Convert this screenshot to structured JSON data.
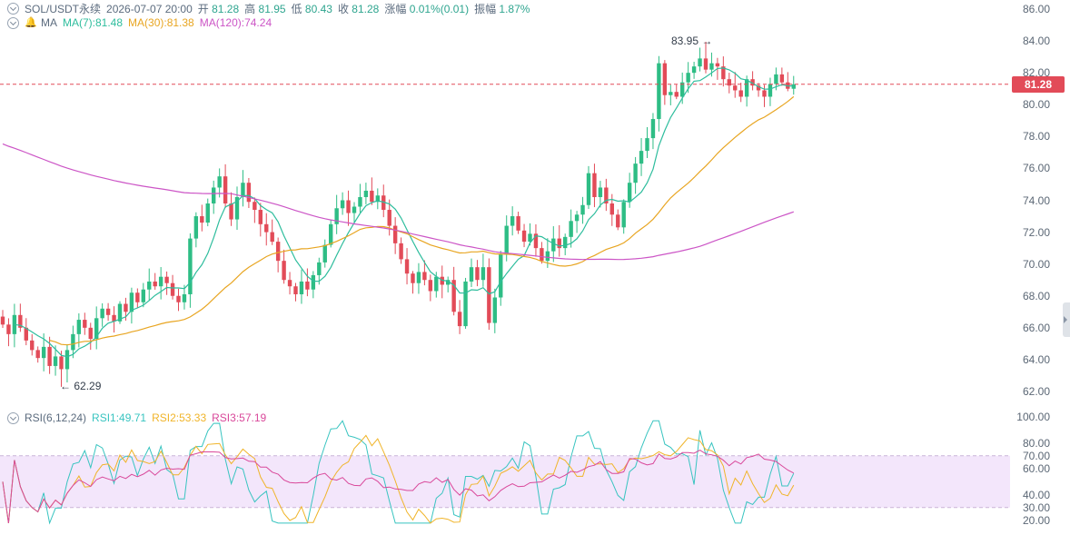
{
  "header": {
    "symbol": "SOL/USDT永续",
    "datetime": "2026-07-07 20:00",
    "open_label": "开",
    "open": "81.28",
    "high_label": "高",
    "high": "81.95",
    "low_label": "低",
    "low": "80.43",
    "close_label": "收",
    "close": "81.28",
    "change_label": "涨幅",
    "change": "0.01%(0.01)",
    "amp_label": "振幅",
    "amp": "1.87%"
  },
  "ma_bar": {
    "label": "MA",
    "ma7": "MA(7):81.48",
    "ma30": "MA(30):81.38",
    "ma120": "MA(120):74.24"
  },
  "rsi_bar": {
    "label": "RSI(6,12,24)",
    "rsi1": "RSI1:49.71",
    "rsi2": "RSI2:53.33",
    "rsi3": "RSI3:57.19"
  },
  "price_axis": [
    "86.00",
    "84.00",
    "82.00",
    "80.00",
    "78.00",
    "76.00",
    "74.00",
    "72.00",
    "70.00",
    "68.00",
    "66.00",
    "64.00",
    "62.00"
  ],
  "rsi_axis": [
    "100.00",
    "80.00",
    "70.00",
    "60.00",
    "40.00",
    "30.00",
    "20.00"
  ],
  "current_price_tag": "81.28",
  "annotations": {
    "high_mark": "83.95",
    "low_mark": "62.29"
  },
  "colors": {
    "up": "#2ebd85",
    "down": "#e24b58",
    "ma7": "#2ebd9d",
    "ma30": "#e8a521",
    "ma120": "#cc55c6",
    "rsi1": "#38c4c0",
    "rsi2": "#f0b429",
    "rsi3": "#d9489a",
    "rsi_band": "#f3e6fb",
    "price_line": "#e24b58"
  },
  "chart_data": {
    "type": "candlestick",
    "title": "SOL/USDT永续",
    "ylim": [
      61.5,
      86.5
    ],
    "close_series": [
      66.2,
      65.6,
      66.8,
      66.0,
      65.2,
      64.6,
      64.1,
      64.8,
      63.6,
      64.2,
      63.4,
      64.6,
      65.6,
      66.5,
      66.0,
      65.3,
      66.6,
      67.2,
      66.8,
      66.4,
      67.5,
      67.0,
      68.2,
      67.6,
      68.4,
      68.9,
      68.6,
      69.2,
      68.8,
      68.0,
      67.6,
      68.1,
      71.6,
      73.0,
      72.6,
      73.8,
      74.8,
      75.5,
      73.8,
      72.8,
      74.2,
      75.1,
      73.9,
      73.4,
      72.5,
      72.0,
      71.4,
      70.2,
      69.0,
      68.6,
      68.1,
      68.9,
      68.4,
      69.3,
      70.1,
      71.2,
      72.5,
      73.5,
      74.0,
      73.2,
      73.6,
      74.2,
      74.6,
      73.9,
      74.3,
      73.4,
      72.4,
      71.3,
      70.3,
      69.4,
      68.8,
      69.5,
      69.0,
      68.3,
      69.2,
      68.7,
      69.0,
      67.0,
      66.1,
      68.9,
      69.8,
      69.0,
      69.8,
      66.3,
      67.9,
      70.6,
      72.4,
      73.0,
      72.1,
      71.4,
      71.9,
      71.0,
      70.2,
      70.8,
      71.6,
      71.0,
      71.7,
      72.7,
      73.1,
      73.7,
      75.7,
      74.2,
      74.8,
      73.8,
      73.1,
      72.3,
      73.9,
      75.1,
      76.3,
      77.1,
      77.9,
      79.1,
      82.6,
      80.6,
      80.8,
      80.5,
      81.4,
      82.0,
      82.4,
      82.9,
      82.2,
      82.6,
      82.4,
      81.6,
      81.2,
      80.9,
      80.5,
      81.6,
      81.2,
      80.9,
      80.5,
      81.3,
      81.9,
      81.4,
      81.0,
      81.28
    ],
    "high_marker": 83.95,
    "low_marker": 62.29,
    "last_price": 81.28,
    "series": [
      {
        "name": "MA(7)",
        "last": 81.48
      },
      {
        "name": "MA(30)",
        "last": 81.38
      },
      {
        "name": "MA(120)",
        "last": 74.24
      }
    ],
    "rsi": {
      "ylim": [
        15,
        100
      ],
      "band": [
        30,
        70
      ],
      "series": [
        {
          "name": "RSI1",
          "last": 49.71
        },
        {
          "name": "RSI2",
          "last": 53.33
        },
        {
          "name": "RSI3",
          "last": 57.19
        }
      ]
    }
  }
}
